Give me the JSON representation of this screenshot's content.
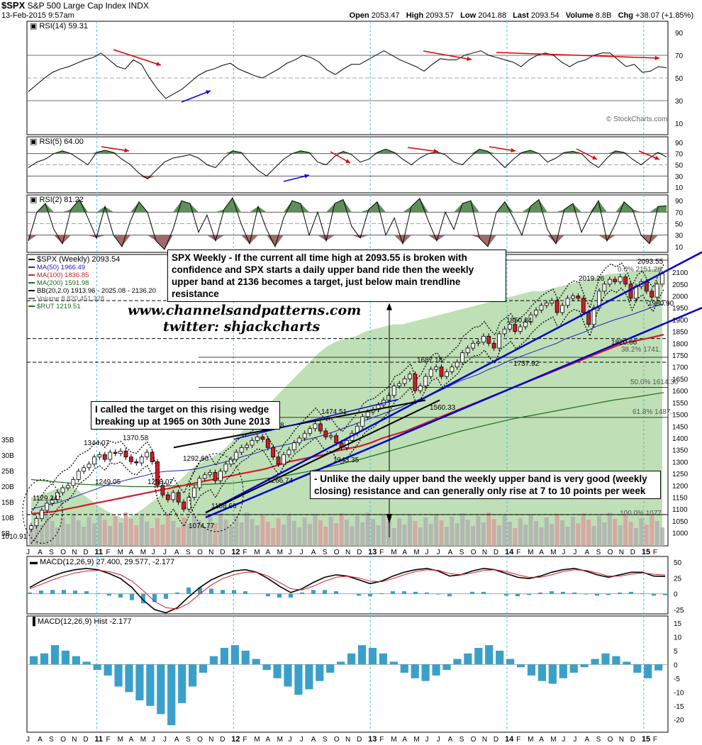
{
  "header": {
    "symbol": "$SPX",
    "name": "S&P 500 Large Cap Index",
    "exchange": "INDX",
    "date": "13-Feb-2015 9:57am",
    "quote": {
      "open_label": "Open",
      "open": "2053.47",
      "high_label": "High",
      "high": "2093.57",
      "low_label": "Low",
      "low": "2041.88",
      "last_label": "Last",
      "last": "2093.54",
      "volume_label": "Volume",
      "volume": "8.8B",
      "chg_label": "Chg",
      "chg": "+38.07 (+1.85%)"
    }
  },
  "watermark": {
    "copyright": "© StockCharts.com"
  },
  "annotations": {
    "site": "www.channelsandpatterns.com",
    "twitter": "twitter: shjackcharts",
    "box_top": "SPX Weekly - If the current all time high at 2093.55 is broken with confidence and SPX starts a daily upper band ride then the weekly upper band at 2136 becomes a target, just below main trendline resistance",
    "box_left": "I called the target on this rising wedge breaking up at 1965 on 30th June 2013",
    "box_bottom": "- Unlike the daily upper band the weekly upper band is very good (weekly closing) resistance and can generally only rise at 7 to 10 points per week"
  },
  "colors": {
    "green_fill": "#b4d9a9",
    "red": "#d21c27",
    "blue": "#0000cc",
    "ma200": "#1f6b1f",
    "macd_hist": "#3aa0c9",
    "rsi_area": "#5f8f5a",
    "rsi_low": "#a06a6a"
  },
  "chart_data": [
    {
      "type": "line",
      "title": "RSI(14) 59.31",
      "series": [
        {
          "name": "RSI(14)",
          "values": [
            38,
            44,
            50,
            55,
            58,
            60,
            63,
            66,
            68,
            72,
            66,
            60,
            58,
            66,
            62,
            50,
            40,
            32,
            36,
            40,
            46,
            52,
            56,
            58,
            61,
            63,
            58,
            55,
            52,
            50,
            54,
            58,
            63,
            66,
            70,
            68,
            64,
            57,
            53,
            58,
            62,
            62,
            66,
            70,
            74,
            70,
            66,
            63,
            60,
            56,
            62,
            67,
            66,
            66,
            70,
            72,
            74,
            70,
            68,
            66,
            64,
            60,
            66,
            70,
            72,
            70,
            64,
            60,
            64,
            66,
            70,
            72,
            72,
            66,
            60,
            62,
            55,
            56,
            60,
            59
          ]
        }
      ],
      "ylim": [
        0,
        100
      ],
      "yticks": [
        10,
        30,
        50,
        70,
        90
      ]
    },
    {
      "type": "area",
      "title": "RSI(5) 64.00",
      "series": [
        {
          "name": "RSI(5)",
          "values": [
            45,
            55,
            60,
            70,
            75,
            70,
            60,
            50,
            72,
            76,
            72,
            60,
            50,
            35,
            25,
            40,
            55,
            62,
            65,
            68,
            62,
            50,
            45,
            62,
            75,
            72,
            55,
            40,
            30,
            45,
            60,
            70,
            75,
            72,
            55,
            50,
            65,
            74,
            68,
            55,
            60,
            72,
            78,
            72,
            60,
            50,
            62,
            70,
            73,
            68,
            55,
            50,
            65,
            78,
            74,
            60,
            45,
            60,
            72,
            76,
            70,
            55,
            62,
            72,
            74,
            70,
            55,
            45,
            62,
            75,
            72,
            60,
            50,
            62,
            72,
            64
          ]
        }
      ],
      "ylim": [
        0,
        100
      ],
      "yticks": [
        10,
        30,
        50,
        70,
        90
      ]
    },
    {
      "type": "area",
      "title": "RSI(2) 81.22",
      "series": [
        {
          "name": "RSI(2)",
          "values": [
            20,
            70,
            85,
            40,
            15,
            75,
            92,
            60,
            25,
            80,
            30,
            10,
            55,
            88,
            70,
            20,
            5,
            40,
            90,
            85,
            35,
            65,
            20,
            75,
            95,
            50,
            15,
            80,
            40,
            10,
            60,
            90,
            85,
            30,
            70,
            20,
            85,
            92,
            45,
            25,
            75,
            88,
            30,
            60,
            15,
            80,
            94,
            55,
            20,
            70,
            40,
            85,
            90,
            25,
            10,
            70,
            88,
            60,
            30,
            80,
            92,
            40,
            15,
            75,
            85,
            35,
            65,
            90,
            20,
            50,
            88,
            75,
            30,
            15,
            80,
            81
          ]
        }
      ],
      "ylim": [
        0,
        100
      ],
      "yticks": [
        10,
        30,
        50,
        70,
        90
      ]
    },
    {
      "type": "line",
      "title": "$SPX (Weekly) 2093.54",
      "legend": [
        "$SPX (Weekly) 2093.54",
        "MA(50) 1966.49",
        "MA(100) 1836.85",
        "MA(200) 1591.98",
        "BB(20,2.0) 1913.96 - 2025.08 - 2136.20",
        "Volume 8,820,451,328",
        "$RUT 1219.51"
      ],
      "x_tick_labels": [
        "J",
        "A",
        "S",
        "O",
        "N",
        "D",
        "11",
        "F",
        "M",
        "A",
        "M",
        "J",
        "J",
        "A",
        "S",
        "O",
        "N",
        "D",
        "12",
        "F",
        "M",
        "A",
        "M",
        "J",
        "J",
        "A",
        "S",
        "O",
        "N",
        "D",
        "13",
        "F",
        "M",
        "A",
        "M",
        "J",
        "J",
        "A",
        "S",
        "O",
        "N",
        "D",
        "14",
        "F",
        "M",
        "A",
        "M",
        "J",
        "J",
        "A",
        "S",
        "O",
        "N",
        "D",
        "15",
        "F"
      ],
      "yticks": [
        1000,
        1050,
        1100,
        1150,
        1200,
        1250,
        1300,
        1350,
        1400,
        1450,
        1500,
        1550,
        1600,
        1650,
        1700,
        1750,
        1800,
        1850,
        1900,
        1950,
        2000,
        2050,
        2100
      ],
      "volume_ticks": [
        "5B",
        "10B",
        "15B",
        "20B",
        "25B",
        "30B",
        "35B"
      ],
      "ylim": [
        975,
        2175
      ],
      "close": [
        1030,
        1060,
        1095,
        1125,
        1140,
        1170,
        1190,
        1200,
        1225,
        1260,
        1275,
        1290,
        1320,
        1330,
        1310,
        1340,
        1335,
        1345,
        1320,
        1300,
        1295,
        1320,
        1340,
        1300,
        1200,
        1160,
        1140,
        1170,
        1130,
        1100,
        1150,
        1190,
        1230,
        1245,
        1255,
        1220,
        1260,
        1290,
        1310,
        1340,
        1360,
        1370,
        1390,
        1405,
        1395,
        1360,
        1320,
        1290,
        1330,
        1350,
        1380,
        1400,
        1420,
        1440,
        1460,
        1430,
        1405,
        1410,
        1380,
        1360,
        1390,
        1420,
        1450,
        1490,
        1510,
        1520,
        1540,
        1560,
        1580,
        1620,
        1630,
        1650,
        1670,
        1600,
        1620,
        1660,
        1690,
        1700,
        1660,
        1680,
        1700,
        1720,
        1760,
        1780,
        1800,
        1805,
        1830,
        1800,
        1780,
        1840,
        1860,
        1880,
        1850,
        1870,
        1890,
        1920,
        1940,
        1960,
        1970,
        1980,
        1930,
        1960,
        1990,
        2000,
        1990,
        1930,
        1880,
        1950,
        2020,
        2050,
        2070,
        2060,
        2080,
        2050,
        1990,
        2040,
        2060,
        2020,
        1995,
        2050,
        2093.54
      ],
      "ma50": [
        1100,
        1110,
        1120,
        1130,
        1145,
        1160,
        1175,
        1190,
        1205,
        1215,
        1225,
        1235,
        1245,
        1255,
        1260,
        1262,
        1265,
        1270,
        1280,
        1290,
        1300,
        1312,
        1325,
        1335,
        1350,
        1362,
        1370,
        1380,
        1392,
        1400,
        1412,
        1425,
        1440,
        1455,
        1470,
        1485,
        1500,
        1515,
        1530,
        1550,
        1565,
        1580,
        1600,
        1620,
        1640,
        1655,
        1670,
        1690,
        1705,
        1725,
        1740,
        1755,
        1770,
        1785,
        1800,
        1820,
        1835,
        1850,
        1870,
        1885,
        1900,
        1912,
        1925,
        1940,
        1955,
        1966.49
      ],
      "ma100": [
        1080,
        1085,
        1090,
        1100,
        1110,
        1120,
        1130,
        1140,
        1150,
        1160,
        1170,
        1180,
        1190,
        1200,
        1210,
        1220,
        1230,
        1240,
        1250,
        1260,
        1270,
        1285,
        1300,
        1310,
        1320,
        1330,
        1345,
        1355,
        1365,
        1380,
        1400,
        1415,
        1430,
        1450,
        1470,
        1490,
        1510,
        1530,
        1550,
        1570,
        1590,
        1610,
        1630,
        1650,
        1670,
        1690,
        1710,
        1730,
        1750,
        1770,
        1790,
        1805,
        1815,
        1825,
        1836.85
      ],
      "ma200": [
        1225,
        1215,
        1205,
        1200,
        1195,
        1195,
        1200,
        1205,
        1210,
        1225,
        1240,
        1260,
        1285,
        1310,
        1340,
        1370,
        1400,
        1430,
        1455,
        1480,
        1500,
        1520,
        1540,
        1560,
        1575,
        1591.98
      ],
      "rut": [
        1150,
        1160,
        1175,
        1190,
        1200,
        1180,
        1150,
        1120,
        1095,
        1075,
        1060,
        1075,
        1100,
        1130,
        1160,
        1190,
        1220,
        1260,
        1290,
        1310,
        1330,
        1360,
        1400,
        1440,
        1480,
        1520,
        1560,
        1600,
        1640,
        1680,
        1720,
        1760,
        1790,
        1810,
        1820,
        1830,
        1850,
        1860,
        1870,
        1880,
        1880,
        1890,
        1900,
        1910,
        1920,
        1930,
        1940,
        1950,
        1960,
        1970,
        1980,
        1990,
        2000,
        2010,
        2020,
        2020,
        2030,
        2040,
        2050,
        2060,
        2070,
        2080,
        2090,
        2095,
        2100,
        2105,
        2110,
        2115,
        2120
      ],
      "price_labels": [
        "1010.91",
        "1129.24",
        "1249.05",
        "1344.07",
        "1370.58",
        "1258.07",
        "1292.66",
        "1158.66",
        "1074.77",
        "422.38",
        "1266.74",
        "1474.51",
        "1343.35",
        "1687.18",
        "1560.33",
        "1850.84",
        "1737.92",
        "2019.26",
        "1820.66",
        "2093.55",
        "1980.90"
      ],
      "fib_labels": [
        "0.0% 2151.28",
        "38.2% 1741.",
        "50.0% 1614.30",
        "61.8% 1487.",
        "100.0% 1077"
      ]
    },
    {
      "type": "line",
      "title": "MACD(12,26,9) 27.400, 29.577, -2.177",
      "series": [
        {
          "name": "MACD",
          "values": [
            10,
            20,
            28,
            34,
            38,
            40,
            38,
            32,
            24,
            10,
            -10,
            -25,
            -30,
            -22,
            -5,
            10,
            22,
            30,
            36,
            38,
            34,
            24,
            12,
            2,
            8,
            18,
            26,
            30,
            28,
            22,
            16,
            20,
            28,
            34,
            38,
            40,
            36,
            28,
            30,
            36,
            40,
            38,
            32,
            26,
            24,
            28,
            34,
            38,
            40,
            36,
            30,
            26,
            30,
            34,
            34,
            28,
            27.4
          ]
        },
        {
          "name": "Signal",
          "values": [
            8,
            15,
            22,
            28,
            33,
            36,
            37,
            35,
            30,
            20,
            5,
            -12,
            -22,
            -24,
            -15,
            0,
            14,
            24,
            30,
            34,
            34,
            28,
            18,
            8,
            6,
            12,
            20,
            26,
            28,
            25,
            20,
            19,
            24,
            30,
            35,
            38,
            37,
            32,
            30,
            33,
            37,
            38,
            35,
            30,
            26,
            26,
            30,
            35,
            38,
            37,
            33,
            28,
            28,
            31,
            33,
            31,
            29.577
          ]
        }
      ],
      "yticks": [
        -25,
        0,
        25,
        50
      ]
    },
    {
      "type": "bar",
      "title": "MACD(12,26,9) Hist -2.177",
      "values": [
        3,
        4,
        7,
        5,
        3,
        1,
        -2,
        -4,
        -8,
        -10,
        -13,
        -15,
        -18,
        -22,
        -14,
        -8,
        -3,
        3,
        6,
        7,
        5,
        2,
        -2,
        -5,
        -8,
        -11,
        -9,
        -6,
        -3,
        1,
        4,
        7,
        6,
        4,
        1,
        -3,
        -5,
        -6,
        -4,
        -2,
        2,
        4,
        6,
        7,
        5,
        2,
        -1,
        -4,
        -6,
        -7,
        -5,
        -3,
        -1,
        2,
        4,
        3,
        1,
        -3,
        -5,
        -2.177
      ],
      "yticks": [
        -20,
        -15,
        -10,
        -5,
        0,
        5,
        10,
        15
      ]
    }
  ]
}
